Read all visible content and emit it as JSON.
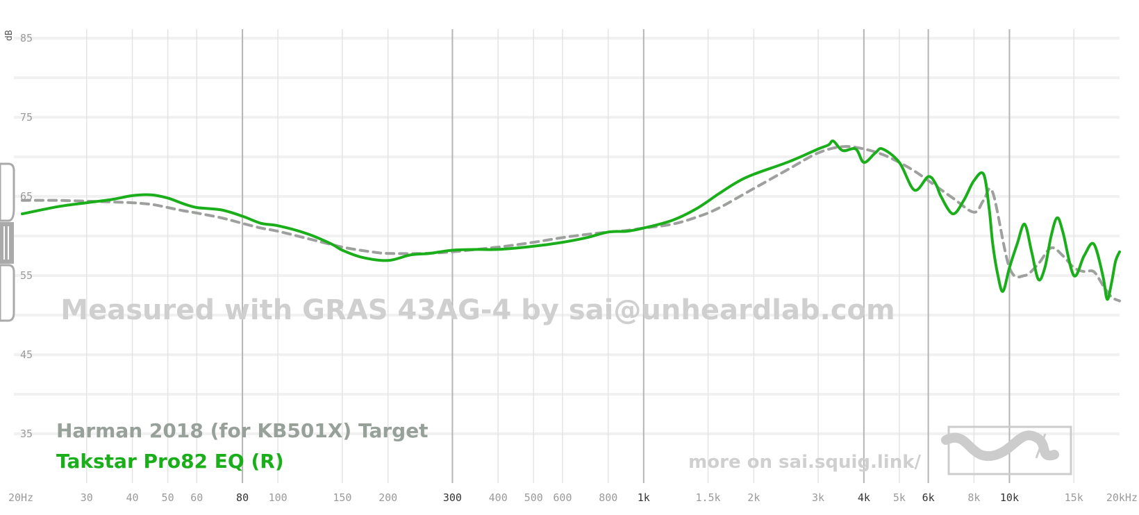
{
  "chart_data": {
    "type": "line",
    "x_scale": "log",
    "xlim": [
      20,
      20000
    ],
    "ylim": [
      30,
      85
    ],
    "y_unit": "dB",
    "yticks": [
      35,
      45,
      55,
      65,
      75,
      85
    ],
    "xticks": [
      {
        "value": 20,
        "label": "20Hz",
        "major": false
      },
      {
        "value": 30,
        "label": "30",
        "major": false
      },
      {
        "value": 40,
        "label": "40",
        "major": false
      },
      {
        "value": 50,
        "label": "50",
        "major": false
      },
      {
        "value": 60,
        "label": "60",
        "major": false
      },
      {
        "value": 80,
        "label": "80",
        "major": true
      },
      {
        "value": 100,
        "label": "100",
        "major": false
      },
      {
        "value": 150,
        "label": "150",
        "major": false
      },
      {
        "value": 200,
        "label": "200",
        "major": false
      },
      {
        "value": 300,
        "label": "300",
        "major": true
      },
      {
        "value": 400,
        "label": "400",
        "major": false
      },
      {
        "value": 500,
        "label": "500",
        "major": false
      },
      {
        "value": 600,
        "label": "600",
        "major": false
      },
      {
        "value": 800,
        "label": "800",
        "major": false
      },
      {
        "value": 1000,
        "label": "1k",
        "major": true
      },
      {
        "value": 1500,
        "label": "1.5k",
        "major": false
      },
      {
        "value": 2000,
        "label": "2k",
        "major": false
      },
      {
        "value": 3000,
        "label": "3k",
        "major": false
      },
      {
        "value": 4000,
        "label": "4k",
        "major": true
      },
      {
        "value": 5000,
        "label": "5k",
        "major": false
      },
      {
        "value": 6000,
        "label": "6k",
        "major": true
      },
      {
        "value": 8000,
        "label": "8k",
        "major": false
      },
      {
        "value": 10000,
        "label": "10k",
        "major": true
      },
      {
        "value": 15000,
        "label": "15k",
        "major": false
      },
      {
        "value": 20000,
        "label": "20kHz",
        "major": false
      }
    ],
    "watermark": "Measured with GRAS 43AG-4 by sai@unheardlab.com",
    "footer_link": "more on sai.squig.link/",
    "grid": true,
    "legend_position": "bottom-left",
    "series": [
      {
        "name": "Harman 2018 (for KB501X) Target",
        "color": "#9ea09e",
        "style": "dashed",
        "x": [
          20,
          25,
          30,
          35,
          40,
          45,
          50,
          55,
          60,
          70,
          80,
          90,
          100,
          120,
          150,
          180,
          200,
          250,
          300,
          400,
          500,
          600,
          700,
          800,
          900,
          1000,
          1200,
          1400,
          1600,
          2000,
          2500,
          3000,
          3500,
          4000,
          4500,
          5000,
          5500,
          6000,
          7000,
          8000,
          8500,
          9000,
          10000,
          11000,
          12000,
          13000,
          14000,
          15000,
          16000,
          17000,
          18000,
          19000,
          20000
        ],
        "y": [
          64.5,
          64.5,
          64.4,
          64.3,
          64.2,
          64.0,
          63.6,
          63.2,
          62.9,
          62.3,
          61.6,
          61.0,
          60.6,
          59.7,
          58.6,
          58.0,
          57.8,
          57.8,
          58.0,
          58.6,
          59.2,
          59.8,
          60.2,
          60.5,
          60.7,
          61.0,
          61.5,
          62.4,
          63.5,
          66.0,
          68.5,
          70.5,
          71.3,
          71.0,
          70.3,
          69.3,
          68.2,
          67.0,
          64.8,
          63.0,
          64.5,
          65.5,
          56.0,
          55.0,
          56.5,
          58.5,
          57.5,
          56.0,
          55.5,
          55.5,
          53.8,
          52.3,
          51.8
        ]
      },
      {
        "name": "Takstar Pro82 EQ (R)",
        "color": "#1aae1a",
        "style": "solid",
        "x": [
          20,
          25,
          30,
          35,
          40,
          45,
          50,
          55,
          60,
          70,
          80,
          90,
          100,
          120,
          140,
          150,
          170,
          200,
          230,
          260,
          300,
          350,
          400,
          500,
          600,
          700,
          800,
          900,
          1000,
          1200,
          1400,
          1600,
          1800,
          2000,
          2500,
          3000,
          3200,
          3300,
          3500,
          3800,
          4000,
          4300,
          4500,
          5000,
          5500,
          6000,
          6300,
          6500,
          7000,
          7500,
          8000,
          8500,
          8800,
          9000,
          9300,
          9600,
          10000,
          10500,
          11000,
          11500,
          12000,
          12500,
          13000,
          13500,
          14000,
          15000,
          16000,
          17000,
          18000,
          18500,
          19000,
          19500,
          20000
        ],
        "y": [
          62.8,
          63.7,
          64.2,
          64.6,
          65.1,
          65.2,
          64.8,
          64.1,
          63.6,
          63.3,
          62.5,
          61.6,
          61.3,
          60.3,
          59.0,
          58.2,
          57.3,
          56.9,
          57.6,
          57.8,
          58.2,
          58.3,
          58.3,
          58.7,
          59.2,
          59.8,
          60.5,
          60.6,
          61.0,
          62.0,
          63.5,
          65.3,
          66.8,
          67.8,
          69.4,
          71.0,
          71.5,
          72.0,
          70.8,
          71.0,
          69.3,
          70.5,
          71.0,
          69.3,
          65.8,
          67.5,
          66.5,
          65.0,
          62.8,
          64.5,
          67.0,
          67.8,
          63.5,
          59.0,
          55.0,
          53.0,
          56.0,
          59.0,
          61.5,
          58.0,
          54.5,
          56.0,
          60.0,
          62.3,
          60.5,
          55.0,
          57.5,
          59.0,
          55.0,
          52.0,
          54.0,
          56.8,
          58.0
        ]
      }
    ]
  }
}
